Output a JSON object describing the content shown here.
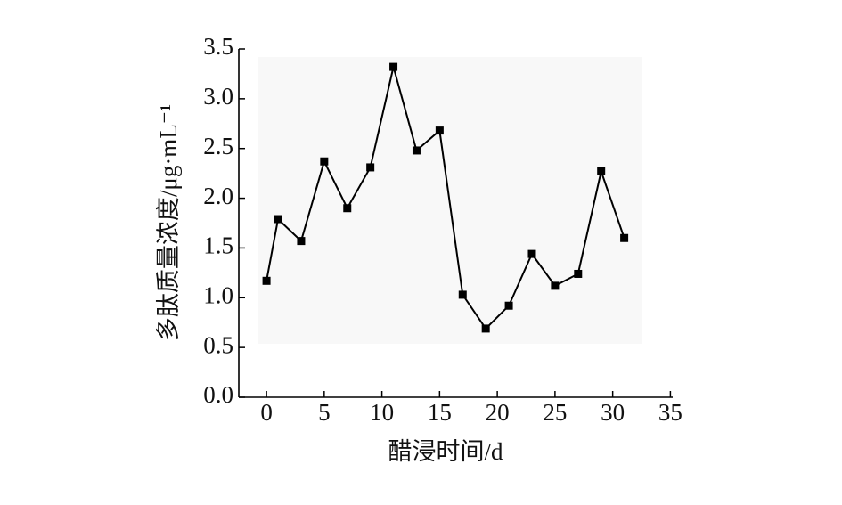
{
  "chart_data": {
    "type": "line",
    "x_label": "醋浸时间/d",
    "y_label": "多肽质量浓度/μg·mL⁻¹",
    "x": [
      0,
      1,
      3,
      5,
      7,
      9,
      11,
      13,
      15,
      17,
      19,
      21,
      23,
      25,
      27,
      29,
      31
    ],
    "values": [
      1.17,
      1.79,
      1.57,
      2.37,
      1.9,
      2.31,
      3.32,
      2.48,
      2.68,
      1.03,
      0.69,
      0.92,
      1.44,
      1.12,
      1.24,
      2.27,
      1.6
    ],
    "color": "#000000",
    "xlim": [
      -2.4,
      35.2
    ],
    "xticks": [
      0,
      5,
      10,
      15,
      20,
      25,
      30,
      35
    ],
    "ylim": [
      0,
      3.5
    ],
    "yticks": [
      {
        "value": 0,
        "label": "0.0"
      },
      0.5,
      {
        "value": 1,
        "label": "1.0"
      },
      1.5,
      {
        "value": 2,
        "label": "2.0"
      },
      2.5,
      {
        "value": 3,
        "label": "3.0"
      },
      3.5
    ],
    "grid": false
  }
}
